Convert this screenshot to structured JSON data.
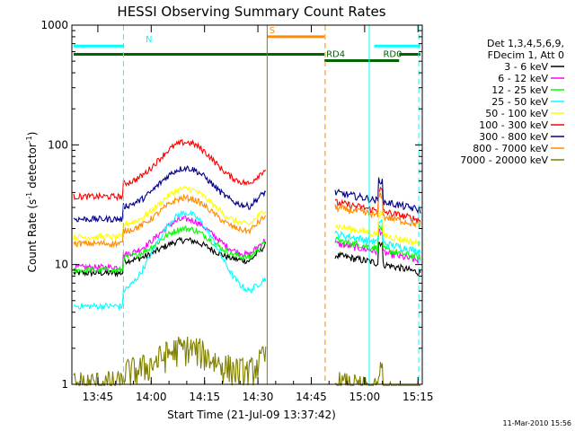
{
  "chart_data": {
    "type": "line",
    "title": "HESSI Observing Summary Count Rates",
    "xlabel": "Start Time (21-Jul-09 13:37:42)",
    "ylabel": "Count Rate (s",
    "ylabel_sup1": "-1",
    "ylabel_mid": " detector",
    "ylabel_sup2": "-1",
    "ylabel_end": ")",
    "y_scale": "log",
    "ylim": [
      1,
      1000
    ],
    "xlim_minutes": [
      0,
      98.5
    ],
    "x_ticks": [
      {
        "minute": 7.3,
        "label": "13:45"
      },
      {
        "minute": 22.3,
        "label": "14:00"
      },
      {
        "minute": 37.3,
        "label": "14:15"
      },
      {
        "minute": 52.3,
        "label": "14:30"
      },
      {
        "minute": 67.3,
        "label": "14:45"
      },
      {
        "minute": 82.3,
        "label": "15:00"
      },
      {
        "minute": 97.3,
        "label": "15:15"
      }
    ],
    "y_ticks": [
      {
        "value": 1,
        "label": "1"
      },
      {
        "value": 10,
        "label": "10"
      },
      {
        "value": 100,
        "label": "100"
      },
      {
        "value": 1000,
        "label": "1000"
      }
    ],
    "legend_title_lines": [
      "Det 1,3,4,5,6,9,",
      "FDecim 1, Att 0"
    ],
    "legend_placement": "right",
    "series": [
      {
        "name": "3 - 6 keV",
        "color": "#000000",
        "base": 8.5,
        "peak": 16,
        "post": 12
      },
      {
        "name": "6 - 12 keV",
        "color": "#ff00ff",
        "base": 9.5,
        "peak": 24,
        "post": 15
      },
      {
        "name": "12 - 25 keV",
        "color": "#00ff00",
        "base": 9,
        "peak": 20,
        "post": 16
      },
      {
        "name": "25 - 50 keV",
        "color": "#00ffff",
        "base": 4.5,
        "peak": 27,
        "post": 18
      },
      {
        "name": "50 - 100 keV",
        "color": "#ffff00",
        "base": 17,
        "peak": 43,
        "post": 21
      },
      {
        "name": "100 - 300 keV",
        "color": "#ff0000",
        "base": 37,
        "peak": 105,
        "post": 33
      },
      {
        "name": "300 - 800 keV",
        "color": "#00008b",
        "base": 24,
        "peak": 64,
        "post": 40
      },
      {
        "name": "800 - 7000 keV",
        "color": "#ff8c00",
        "base": 15,
        "peak": 36,
        "post": 30
      },
      {
        "name": "7000 - 20000 keV",
        "color": "#808000",
        "base": 1,
        "peak": 2,
        "post": 1
      }
    ],
    "flag_bars": [
      {
        "label": "N",
        "color": "#00ffff",
        "start_minute": 0.5,
        "end_minute": 14.5,
        "level": 670
      },
      {
        "label": "",
        "color": "#00ffff",
        "start_minute": 85,
        "end_minute": 98,
        "level": 670
      },
      {
        "label": "S",
        "color": "#ff8c00",
        "start_minute": 55,
        "end_minute": 71,
        "level": 800
      },
      {
        "label": "",
        "color": "#006400",
        "start_minute": 0.5,
        "end_minute": 71,
        "level": 570
      },
      {
        "label": "RD4",
        "color": "#006400",
        "start_minute": 71,
        "end_minute": 87,
        "level": 505
      },
      {
        "label": "RD0",
        "color": "#006400",
        "start_minute": 87,
        "end_minute": 92,
        "level": 505
      },
      {
        "label": "",
        "color": "#006400",
        "start_minute": 92,
        "end_minute": 98,
        "level": 570
      }
    ],
    "event_lines": [
      {
        "minute": 14.5,
        "color": "#00ffff",
        "style": "dashed"
      },
      {
        "minute": 71.2,
        "color": "#ff8c00",
        "style": "dashed"
      },
      {
        "minute": 97.5,
        "color": "#00ffff",
        "style": "dashed"
      },
      {
        "minute": 54.9,
        "color": "#808000",
        "style": "solid"
      },
      {
        "minute": 83.6,
        "color": "#00ffff",
        "style": "solid"
      }
    ],
    "grid": false
  },
  "footer": {
    "timestamp": "11-Mar-2010 15:56"
  }
}
